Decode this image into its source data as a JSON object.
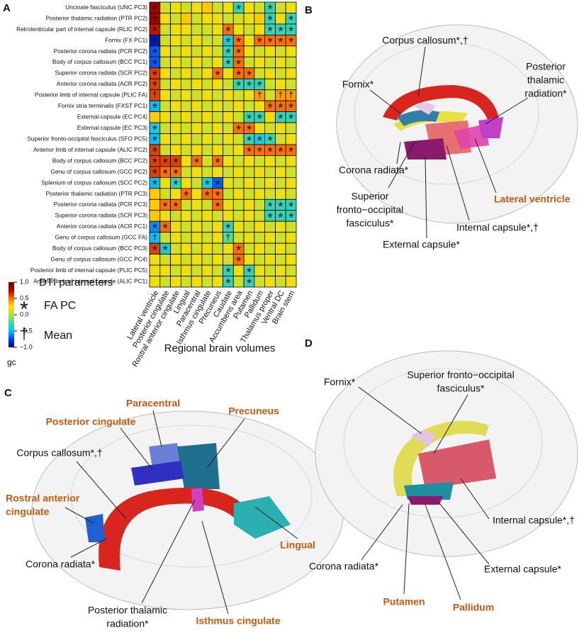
{
  "chart_data": {
    "type": "heatmap",
    "panel_letter": "A",
    "rows": [
      "Uncinate fasciculus (UNC PC3)",
      "Posterior thalamic radiation (PTR PC2)",
      "Retrolenticular part of internal capsule (RLIC PC2)",
      "Fornix (FX PC1)",
      "Posterior corona radiata (PCR PC2)",
      "Body of corpus callosum (BCC PC1)",
      "Superior corona radiata (SCR PC2)",
      "Anterior corona radiata (ACR PC2)",
      "Posterior limb of internal capsule (PLIC FA)",
      "Fornix stria terminalis (FXST PC1)",
      "External capsule (EC PC4)",
      "External capsule (EC PC3)",
      "Superior fronto-occipital fasciculus (SFO PC5)",
      "Anterior limb of internal capsule (ALIC PC2)",
      "Body of corpus callosum (BCC PC2)",
      "Genu of corpus callosum (GCC PC2)",
      "Splenium of corpus callosum (SCC PC2)",
      "Posterior thalamic radiation (PTR PC3)",
      "Posterior corona radiata (PCR PC3)",
      "Superior corona radiata (SCR PC3)",
      "Anterior corona radiata (ACR PC1)",
      "Genu of corpus callosum (GCC FA)",
      "Body of corpus callosum (BCC PC3)",
      "Genu of corpus callosum (GCC PC4)",
      "Posterior limb of internal capsule (PLIC PC5)",
      "Anterior limb of internal capsule (ALIC PC1)"
    ],
    "columns": [
      "Lateral ventricle",
      "Posterior cingulate",
      "Rostral anterior cingulate",
      "Lingual",
      "Paracentral",
      "Isthmus cingulate",
      "Precuneus",
      "Caudate",
      "Accumbens area",
      "Putamen",
      "Pallidum",
      "Thalamus proper",
      "Ventral DC",
      "Brain stem"
    ],
    "x_label": "Regional brain volumes",
    "values": [
      [
        0.8,
        0.1,
        0.2,
        0.1,
        0.2,
        0.3,
        0.1,
        0.2,
        -0.3,
        0.2,
        0.1,
        -0.3,
        0.1,
        0.2
      ],
      [
        0.8,
        0.2,
        0.1,
        0.3,
        0.1,
        0.2,
        0.2,
        0.1,
        0.1,
        0.2,
        0.3,
        -0.3,
        0.2,
        -0.3
      ],
      [
        0.7,
        0.1,
        0.2,
        0.2,
        0.1,
        0.1,
        0.2,
        0.5,
        0.2,
        0.1,
        0.2,
        -0.3,
        -0.3,
        -0.3
      ],
      [
        -0.9,
        0.1,
        0.2,
        0.1,
        0.2,
        0.1,
        0.1,
        -0.4,
        0.5,
        0.2,
        0.5,
        0.5,
        0.5,
        0.5
      ],
      [
        -0.7,
        0.2,
        0.1,
        0.2,
        0.1,
        0.2,
        0.1,
        -0.3,
        0.5,
        0.2,
        0.1,
        0.2,
        0.1,
        0.2
      ],
      [
        -0.7,
        0.1,
        0.2,
        0.1,
        0.2,
        0.1,
        0.2,
        -0.3,
        0.5,
        0.1,
        0.2,
        0.1,
        0.2,
        0.1
      ],
      [
        0.6,
        0.2,
        0.1,
        0.2,
        0.1,
        0.2,
        0.5,
        0.2,
        0.5,
        0.5,
        0.1,
        0.2,
        0.1,
        0.2
      ],
      [
        0.6,
        0.1,
        0.2,
        0.1,
        0.2,
        0.1,
        0.2,
        0.1,
        -0.3,
        -0.3,
        -0.3,
        0.1,
        0.2,
        0.1
      ],
      [
        0.6,
        0.2,
        0.1,
        0.2,
        0.1,
        0.2,
        0.1,
        0.2,
        0.1,
        0.2,
        0.4,
        0.1,
        0.4,
        0.4
      ],
      [
        -0.5,
        0.1,
        0.2,
        0.1,
        0.2,
        0.1,
        0.2,
        0.1,
        0.2,
        0.1,
        0.2,
        0.5,
        0.5,
        0.5
      ],
      [
        0.3,
        0.2,
        0.1,
        0.2,
        0.1,
        0.2,
        0.1,
        0.2,
        0.1,
        -0.3,
        -0.3,
        0.2,
        -0.3,
        -0.3
      ],
      [
        -0.4,
        0.1,
        0.2,
        0.1,
        0.2,
        0.1,
        0.2,
        0.1,
        0.5,
        0.5,
        0.2,
        0.1,
        0.2,
        0.1
      ],
      [
        -0.5,
        0.2,
        0.1,
        0.2,
        0.1,
        0.2,
        0.1,
        0.2,
        0.1,
        -0.3,
        -0.4,
        -0.3,
        0.1,
        0.2
      ],
      [
        0.6,
        0.1,
        0.2,
        0.1,
        0.2,
        0.1,
        0.2,
        0.1,
        0.2,
        0.5,
        0.5,
        0.5,
        0.5,
        0.5
      ],
      [
        0.6,
        0.6,
        0.6,
        0.2,
        0.5,
        0.1,
        0.5,
        0.2,
        0.1,
        0.2,
        0.1,
        0.2,
        0.1,
        0.2
      ],
      [
        0.6,
        0.5,
        0.5,
        0.1,
        0.2,
        0.1,
        0.2,
        0.1,
        0.2,
        0.1,
        0.2,
        0.1,
        0.2,
        0.1
      ],
      [
        -0.5,
        0.2,
        -0.3,
        0.2,
        0.1,
        -0.4,
        -0.7,
        0.2,
        0.1,
        0.2,
        0.1,
        0.2,
        0.1,
        0.2
      ],
      [
        0.3,
        0.1,
        0.2,
        0.5,
        0.2,
        0.5,
        0.5,
        0.1,
        0.2,
        0.1,
        0.2,
        0.1,
        0.2,
        0.1
      ],
      [
        0.3,
        0.5,
        0.5,
        0.1,
        0.2,
        0.1,
        0.5,
        0.2,
        0.1,
        0.2,
        0.1,
        -0.3,
        -0.3,
        -0.3
      ],
      [
        0.3,
        0.2,
        0.1,
        0.2,
        0.1,
        0.2,
        0.1,
        0.2,
        0.1,
        0.2,
        0.1,
        -0.3,
        -0.3,
        -0.3
      ],
      [
        -0.6,
        0.5,
        0.2,
        0.1,
        0.2,
        0.1,
        0.2,
        -0.3,
        0.2,
        0.1,
        0.2,
        0.1,
        0.2,
        0.1
      ],
      [
        -0.5,
        0.1,
        0.2,
        0.1,
        0.2,
        0.1,
        0.2,
        -0.2,
        0.1,
        0.2,
        0.1,
        0.2,
        0.1,
        0.2
      ],
      [
        0.6,
        -0.4,
        0.1,
        0.2,
        0.1,
        0.2,
        0.1,
        0.2,
        0.5,
        0.1,
        0.2,
        0.1,
        0.2,
        0.1
      ],
      [
        0.2,
        0.1,
        0.2,
        0.1,
        0.2,
        0.1,
        0.2,
        0.1,
        0.5,
        0.2,
        0.1,
        0.2,
        0.1,
        0.2
      ],
      [
        0.2,
        0.2,
        0.1,
        0.2,
        0.1,
        0.2,
        0.1,
        -0.3,
        0.2,
        -0.3,
        0.2,
        0.1,
        0.2,
        0.1
      ],
      [
        0.2,
        0.1,
        0.2,
        0.1,
        0.2,
        0.1,
        0.2,
        -0.3,
        0.1,
        -0.3,
        0.1,
        0.2,
        0.1,
        0.2
      ]
    ],
    "markers": [
      [
        "*",
        null,
        null,
        null,
        null,
        null,
        null,
        null,
        "*",
        null,
        null,
        "*",
        null,
        null
      ],
      [
        "*",
        null,
        null,
        null,
        null,
        null,
        null,
        null,
        null,
        null,
        null,
        "*",
        null,
        "*"
      ],
      [
        "*",
        null,
        null,
        null,
        null,
        null,
        null,
        "*",
        null,
        null,
        null,
        "*",
        "*",
        "*"
      ],
      [
        "*",
        null,
        null,
        null,
        null,
        null,
        null,
        "*",
        "*",
        null,
        "*",
        "*",
        "*",
        "*"
      ],
      [
        "*",
        null,
        null,
        null,
        null,
        null,
        null,
        "*",
        "*",
        null,
        null,
        null,
        null,
        null
      ],
      [
        "*",
        null,
        null,
        null,
        null,
        null,
        null,
        "*",
        "*",
        null,
        null,
        null,
        null,
        null
      ],
      [
        "*",
        null,
        null,
        null,
        null,
        null,
        "*",
        null,
        "*",
        "*",
        null,
        null,
        null,
        null
      ],
      [
        "*",
        null,
        null,
        null,
        null,
        null,
        null,
        null,
        "*",
        "*",
        "*",
        null,
        null,
        null
      ],
      [
        "†",
        null,
        null,
        null,
        null,
        null,
        null,
        null,
        null,
        null,
        "†",
        null,
        "†",
        "†"
      ],
      [
        "*",
        null,
        null,
        null,
        null,
        null,
        null,
        null,
        null,
        null,
        null,
        "*",
        "*",
        "*"
      ],
      [
        null,
        null,
        null,
        null,
        null,
        null,
        null,
        null,
        null,
        "*",
        "*",
        null,
        "*",
        "*"
      ],
      [
        "*",
        null,
        null,
        null,
        null,
        null,
        null,
        null,
        "*",
        "*",
        null,
        null,
        null,
        null
      ],
      [
        "*",
        null,
        null,
        null,
        null,
        null,
        null,
        null,
        null,
        "*",
        "*",
        "*",
        null,
        null
      ],
      [
        "*",
        null,
        null,
        null,
        null,
        null,
        null,
        null,
        null,
        "*",
        "*",
        "*",
        "*",
        "*"
      ],
      [
        "*",
        "*",
        "*",
        null,
        "*",
        null,
        "*",
        null,
        null,
        null,
        null,
        null,
        null,
        null
      ],
      [
        "*",
        "*",
        "*",
        null,
        null,
        null,
        null,
        null,
        null,
        null,
        null,
        null,
        null,
        null
      ],
      [
        "*",
        null,
        "*",
        null,
        null,
        "*",
        "*",
        null,
        null,
        null,
        null,
        null,
        null,
        null
      ],
      [
        null,
        null,
        null,
        "*",
        null,
        "*",
        "*",
        null,
        null,
        null,
        null,
        null,
        null,
        null
      ],
      [
        null,
        "*",
        "*",
        null,
        null,
        null,
        "*",
        null,
        null,
        null,
        null,
        "*",
        "*",
        "*"
      ],
      [
        null,
        null,
        null,
        null,
        null,
        null,
        null,
        null,
        null,
        null,
        null,
        "*",
        "*",
        "*"
      ],
      [
        "*",
        "*",
        null,
        null,
        null,
        null,
        null,
        "*",
        null,
        null,
        null,
        null,
        null,
        null
      ],
      [
        "†",
        null,
        null,
        null,
        null,
        null,
        null,
        "†",
        null,
        null,
        null,
        null,
        null,
        null
      ],
      [
        "*",
        "*",
        null,
        null,
        null,
        null,
        null,
        null,
        "*",
        null,
        null,
        null,
        null,
        null
      ],
      [
        null,
        null,
        null,
        null,
        null,
        null,
        null,
        null,
        "*",
        null,
        null,
        null,
        null,
        null
      ],
      [
        null,
        null,
        null,
        null,
        null,
        null,
        null,
        "*",
        null,
        "*",
        null,
        null,
        null,
        null
      ],
      [
        null,
        null,
        null,
        null,
        null,
        null,
        null,
        "*",
        null,
        "*",
        null,
        null,
        null,
        null
      ]
    ],
    "legend_title": "DTI parameters",
    "legend": [
      {
        "symbol": "*",
        "label": "FA PC"
      },
      {
        "symbol": "†",
        "label": "Mean"
      }
    ],
    "colorbar": {
      "label": "gc",
      "lim": [
        -1,
        1
      ],
      "ticks": [
        {
          "value": 1,
          "label": "1.0"
        },
        {
          "value": 0.5,
          "label": "0.5"
        },
        {
          "value": 0,
          "label": "0.0"
        },
        {
          "value": -0.5,
          "label": "−0.5"
        },
        {
          "value": -1,
          "label": "−1.0"
        }
      ],
      "colors": [
        "#00007a",
        "#0040ff",
        "#00c0ff",
        "#40d8a8",
        "#b0e040",
        "#ffe000",
        "#ff7000",
        "#b00000",
        "#7a0000"
      ]
    }
  },
  "panels": [
    {
      "letter": "B",
      "labels": [
        {
          "lines": [
            "Corpus callosum*,†"
          ],
          "highlight": false
        },
        {
          "lines": [
            "Fornix*"
          ],
          "highlight": false
        },
        {
          "lines": [
            "Posterior",
            "thalamic",
            "radiation*"
          ],
          "highlight": false
        },
        {
          "lines": [
            "Corona radiata*"
          ],
          "highlight": false
        },
        {
          "lines": [
            "Lateral ventricle"
          ],
          "highlight": true
        },
        {
          "lines": [
            "Superior",
            "fronto−occipital",
            "fasciculus*"
          ],
          "highlight": false
        },
        {
          "lines": [
            "Internal capsule*,†"
          ],
          "highlight": false
        },
        {
          "lines": [
            "External capsule*"
          ],
          "highlight": false
        }
      ]
    },
    {
      "letter": "C",
      "labels": [
        {
          "lines": [
            "Paracentral"
          ],
          "highlight": true
        },
        {
          "lines": [
            "Posterior cingulate"
          ],
          "highlight": true
        },
        {
          "lines": [
            "Precuneus"
          ],
          "highlight": true
        },
        {
          "lines": [
            "Corpus callosum*,†"
          ],
          "highlight": false
        },
        {
          "lines": [
            "Rostral anterior",
            "cingulate"
          ],
          "highlight": true
        },
        {
          "lines": [
            "Lingual"
          ],
          "highlight": true
        },
        {
          "lines": [
            "Corona radiata*"
          ],
          "highlight": false
        },
        {
          "lines": [
            "Posterior thalamic",
            "radiation*"
          ],
          "highlight": false
        },
        {
          "lines": [
            "Isthmus cingulate"
          ],
          "highlight": true
        }
      ]
    },
    {
      "letter": "D",
      "labels": [
        {
          "lines": [
            "Superior fronto−occipital",
            "fasciculus*"
          ],
          "highlight": false
        },
        {
          "lines": [
            "Fornix*"
          ],
          "highlight": false
        },
        {
          "lines": [
            "Internal capsule*,†"
          ],
          "highlight": false
        },
        {
          "lines": [
            "Corona radiata*"
          ],
          "highlight": false
        },
        {
          "lines": [
            "External capsule*"
          ],
          "highlight": false
        },
        {
          "lines": [
            "Putamen"
          ],
          "highlight": true
        },
        {
          "lines": [
            "Pallidum"
          ],
          "highlight": true
        }
      ]
    }
  ]
}
